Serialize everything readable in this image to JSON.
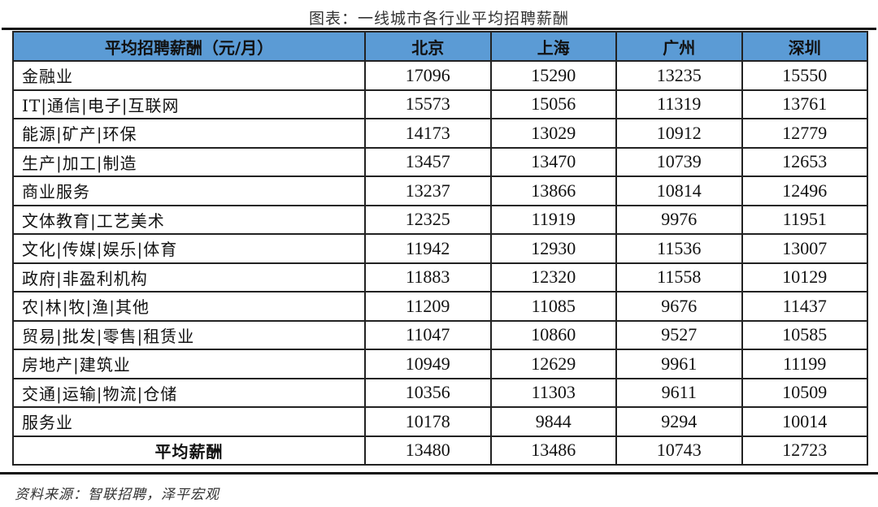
{
  "title": "图表：一线城市各行业平均招聘薪酬",
  "table": {
    "headers": [
      "平均招聘薪酬（元/月）",
      "北京",
      "上海",
      "广州",
      "深圳"
    ],
    "rows": [
      {
        "industry": "金融业",
        "values": [
          "17096",
          "15290",
          "13235",
          "15550"
        ]
      },
      {
        "industry": "IT|通信|电子|互联网",
        "values": [
          "15573",
          "15056",
          "11319",
          "13761"
        ]
      },
      {
        "industry": "能源|矿产|环保",
        "values": [
          "14173",
          "13029",
          "10912",
          "12779"
        ]
      },
      {
        "industry": "生产|加工|制造",
        "values": [
          "13457",
          "13470",
          "10739",
          "12653"
        ]
      },
      {
        "industry": "商业服务",
        "values": [
          "13237",
          "13866",
          "10814",
          "12496"
        ]
      },
      {
        "industry": "文体教育|工艺美术",
        "values": [
          "12325",
          "11919",
          "9976",
          "11951"
        ]
      },
      {
        "industry": "文化|传媒|娱乐|体育",
        "values": [
          "11942",
          "12930",
          "11536",
          "13007"
        ]
      },
      {
        "industry": "政府|非盈利机构",
        "values": [
          "11883",
          "12320",
          "11558",
          "10129"
        ]
      },
      {
        "industry": "农|林|牧|渔|其他",
        "values": [
          "11209",
          "11085",
          "9676",
          "11437"
        ]
      },
      {
        "industry": "贸易|批发|零售|租赁业",
        "values": [
          "11047",
          "10860",
          "9527",
          "10585"
        ]
      },
      {
        "industry": "房地产|建筑业",
        "values": [
          "10949",
          "12629",
          "9961",
          "11199"
        ]
      },
      {
        "industry": "交通|运输|物流|仓储",
        "values": [
          "10356",
          "11303",
          "9611",
          "10509"
        ]
      },
      {
        "industry": "服务业",
        "values": [
          "10178",
          "9844",
          "9294",
          "10014"
        ]
      }
    ],
    "average": {
      "industry": "平均薪酬",
      "values": [
        "13480",
        "13486",
        "10743",
        "12723"
      ]
    }
  },
  "source": "资料来源：智联招聘，泽平宏观",
  "colors": {
    "header_bg": "#5B9BD5"
  }
}
